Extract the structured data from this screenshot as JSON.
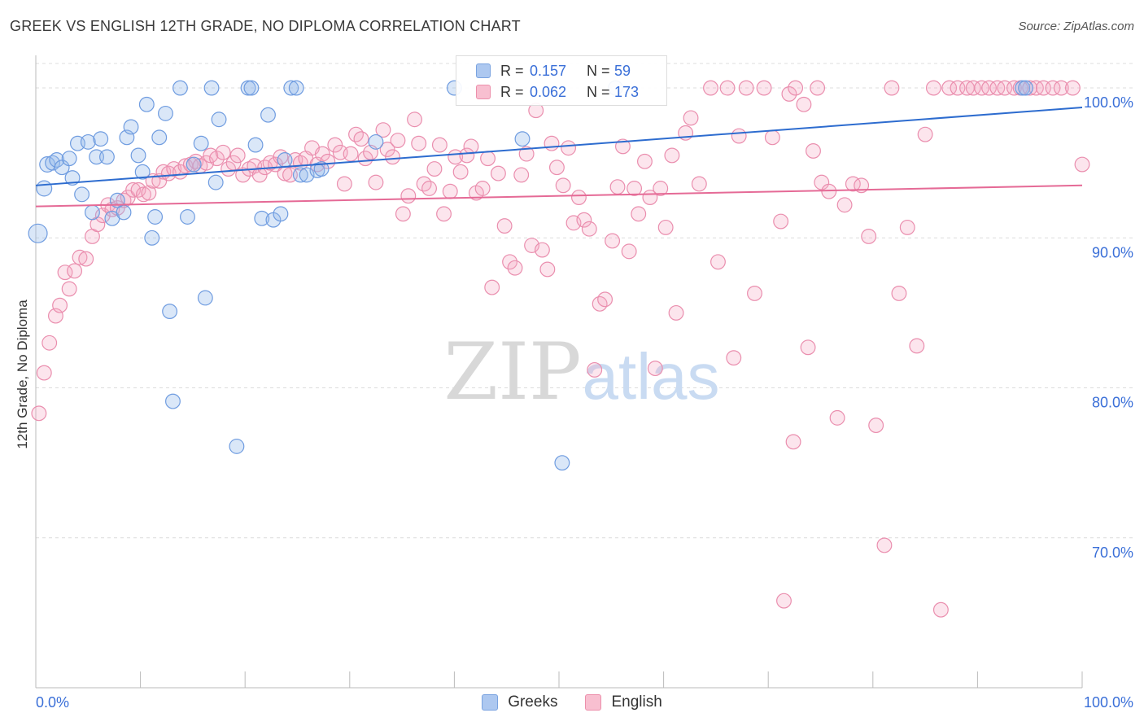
{
  "title": "GREEK VS ENGLISH 12TH GRADE, NO DIPLOMA CORRELATION CHART",
  "source": "Source: ZipAtlas.com",
  "watermark": {
    "zip": "ZIP",
    "atlas": "atlas"
  },
  "legend": {
    "r_label": "R =",
    "n_label": "N =",
    "rows": [
      {
        "name": "Greeks",
        "r": "0.157",
        "n": "59",
        "fill": "#adc8f0",
        "stroke": "#7aa3e0"
      },
      {
        "name": "English",
        "r": "0.062",
        "n": "173",
        "fill": "#f8bfd0",
        "stroke": "#ec8fab"
      }
    ]
  },
  "colors": {
    "greeks_fill": "rgba(150,185,236,0.35)",
    "greeks_stroke": "#6f9ce0",
    "greeks_line": "#2d6ccf",
    "english_fill": "rgba(246,170,195,0.30)",
    "english_stroke": "#ea8eae",
    "english_line": "#e56a96",
    "tick_label": "#3a6fd8",
    "grid": "#dcdcdc"
  },
  "chart_data": {
    "type": "scatter",
    "title": "GREEK VS ENGLISH 12TH GRADE, NO DIPLOMA CORRELATION CHART",
    "ylabel": "12th Grade, No Diploma",
    "xlabel": "",
    "xlim": [
      0,
      100
    ],
    "ylim": [
      60,
      102.5
    ],
    "x_tick_labels": [
      {
        "value": 0,
        "label": "0.0%"
      },
      {
        "value": 100,
        "label": "100.0%"
      }
    ],
    "y_tick_labels": [
      {
        "value": 100,
        "label": "100.0%"
      },
      {
        "value": 90,
        "label": "90.0%"
      },
      {
        "value": 80,
        "label": "80.0%"
      },
      {
        "value": 70,
        "label": "70.0%"
      }
    ],
    "grid": true,
    "legend_placement": "top-center",
    "series": [
      {
        "name": "Greeks",
        "r": 0.157,
        "n": 59,
        "trend": {
          "x": [
            0,
            100
          ],
          "y": [
            93.5,
            98.7
          ]
        },
        "points": [
          [
            0.2,
            90.3
          ],
          [
            0.8,
            93.3
          ],
          [
            1.1,
            94.9
          ],
          [
            1.6,
            95.0
          ],
          [
            2.0,
            95.2
          ],
          [
            2.5,
            94.7
          ],
          [
            3.2,
            95.3
          ],
          [
            3.5,
            94.0
          ],
          [
            4.0,
            96.3
          ],
          [
            4.4,
            92.9
          ],
          [
            5.0,
            96.4
          ],
          [
            5.4,
            91.7
          ],
          [
            5.8,
            95.4
          ],
          [
            6.2,
            96.6
          ],
          [
            6.8,
            95.4
          ],
          [
            7.3,
            91.3
          ],
          [
            7.8,
            92.5
          ],
          [
            8.4,
            91.7
          ],
          [
            8.7,
            96.7
          ],
          [
            9.1,
            97.4
          ],
          [
            9.8,
            95.5
          ],
          [
            10.2,
            94.4
          ],
          [
            10.6,
            98.9
          ],
          [
            11.1,
            90.0
          ],
          [
            11.4,
            91.4
          ],
          [
            11.8,
            96.7
          ],
          [
            12.4,
            98.3
          ],
          [
            12.8,
            85.1
          ],
          [
            13.1,
            79.1
          ],
          [
            13.8,
            100.0
          ],
          [
            14.5,
            91.4
          ],
          [
            15.1,
            94.9
          ],
          [
            15.8,
            96.3
          ],
          [
            16.2,
            86.0
          ],
          [
            16.8,
            100.0
          ],
          [
            17.2,
            93.7
          ],
          [
            17.5,
            97.9
          ],
          [
            19.2,
            76.1
          ],
          [
            20.3,
            100.0
          ],
          [
            20.6,
            100.0
          ],
          [
            21.0,
            96.2
          ],
          [
            21.6,
            91.3
          ],
          [
            22.2,
            98.2
          ],
          [
            22.7,
            91.2
          ],
          [
            23.4,
            91.6
          ],
          [
            23.8,
            95.2
          ],
          [
            24.4,
            100.0
          ],
          [
            24.9,
            100.0
          ],
          [
            25.3,
            94.2
          ],
          [
            25.9,
            94.2
          ],
          [
            26.9,
            94.5
          ],
          [
            27.3,
            94.6
          ],
          [
            32.5,
            96.4
          ],
          [
            40.0,
            100.0
          ],
          [
            46.5,
            96.6
          ],
          [
            50.3,
            75.0
          ],
          [
            55.4,
            100.0
          ],
          [
            94.3,
            100.0
          ],
          [
            94.6,
            100.0
          ]
        ],
        "sizes": [
          44,
          36,
          36,
          34,
          34,
          34,
          34,
          34,
          34,
          34,
          34,
          34,
          34,
          34,
          34,
          34,
          34,
          34,
          34,
          34,
          34,
          34,
          34,
          34,
          34,
          34,
          34,
          34,
          34,
          34,
          34,
          34,
          34,
          34,
          34,
          34,
          34,
          34,
          34,
          34,
          34,
          34,
          34,
          34,
          34,
          34,
          34,
          34,
          34,
          34,
          34,
          34,
          34,
          34,
          34,
          34,
          34,
          34,
          34
        ]
      },
      {
        "name": "English",
        "r": 0.062,
        "n": 173,
        "trend": {
          "x": [
            0,
            100
          ],
          "y": [
            92.1,
            93.5
          ]
        },
        "points": [
          [
            0.3,
            78.3
          ],
          [
            0.8,
            81.0
          ],
          [
            1.3,
            83.0
          ],
          [
            1.9,
            84.8
          ],
          [
            2.3,
            85.5
          ],
          [
            2.8,
            87.7
          ],
          [
            3.2,
            86.6
          ],
          [
            3.7,
            87.8
          ],
          [
            4.2,
            88.7
          ],
          [
            4.8,
            88.6
          ],
          [
            5.4,
            90.1
          ],
          [
            5.9,
            90.9
          ],
          [
            6.4,
            91.5
          ],
          [
            6.9,
            92.2
          ],
          [
            7.3,
            91.9
          ],
          [
            7.8,
            92.0
          ],
          [
            8.4,
            92.5
          ],
          [
            8.8,
            92.7
          ],
          [
            9.3,
            93.2
          ],
          [
            9.8,
            93.2
          ],
          [
            10.3,
            92.9
          ],
          [
            10.8,
            93.0
          ],
          [
            11.2,
            93.8
          ],
          [
            11.8,
            93.8
          ],
          [
            12.2,
            94.4
          ],
          [
            12.7,
            94.3
          ],
          [
            13.2,
            94.6
          ],
          [
            13.8,
            94.4
          ],
          [
            14.3,
            94.8
          ],
          [
            14.8,
            94.9
          ],
          [
            15.3,
            95.1
          ],
          [
            15.7,
            94.8
          ],
          [
            16.3,
            95.0
          ],
          [
            16.7,
            95.5
          ],
          [
            17.3,
            95.3
          ],
          [
            17.9,
            95.7
          ],
          [
            18.4,
            94.6
          ],
          [
            18.9,
            95.0
          ],
          [
            19.3,
            95.5
          ],
          [
            19.8,
            94.2
          ],
          [
            20.4,
            94.6
          ],
          [
            20.9,
            94.8
          ],
          [
            21.4,
            94.2
          ],
          [
            21.9,
            94.7
          ],
          [
            22.4,
            95.0
          ],
          [
            22.9,
            94.9
          ],
          [
            23.4,
            95.4
          ],
          [
            23.8,
            94.3
          ],
          [
            24.3,
            94.2
          ],
          [
            24.8,
            95.2
          ],
          [
            25.3,
            95.0
          ],
          [
            25.8,
            95.3
          ],
          [
            26.4,
            96.0
          ],
          [
            26.9,
            94.9
          ],
          [
            27.4,
            95.6
          ],
          [
            27.9,
            95.1
          ],
          [
            28.6,
            96.2
          ],
          [
            29.1,
            95.7
          ],
          [
            29.5,
            93.6
          ],
          [
            30.1,
            95.6
          ],
          [
            30.6,
            96.9
          ],
          [
            31.1,
            96.6
          ],
          [
            31.5,
            95.3
          ],
          [
            32.0,
            95.7
          ],
          [
            32.5,
            93.7
          ],
          [
            33.2,
            97.2
          ],
          [
            33.6,
            95.9
          ],
          [
            34.1,
            95.4
          ],
          [
            34.6,
            96.5
          ],
          [
            35.1,
            91.6
          ],
          [
            35.6,
            92.8
          ],
          [
            36.2,
            97.9
          ],
          [
            36.6,
            96.3
          ],
          [
            37.1,
            93.6
          ],
          [
            37.6,
            93.3
          ],
          [
            38.1,
            94.6
          ],
          [
            38.6,
            96.2
          ],
          [
            39.0,
            91.6
          ],
          [
            39.6,
            93.1
          ],
          [
            40.1,
            95.4
          ],
          [
            40.6,
            94.4
          ],
          [
            41.2,
            95.5
          ],
          [
            41.6,
            96.1
          ],
          [
            42.1,
            93.0
          ],
          [
            42.7,
            93.3
          ],
          [
            43.2,
            95.3
          ],
          [
            43.6,
            86.7
          ],
          [
            44.2,
            94.3
          ],
          [
            44.8,
            90.8
          ],
          [
            45.3,
            88.4
          ],
          [
            45.8,
            88.0
          ],
          [
            46.4,
            94.2
          ],
          [
            46.9,
            95.6
          ],
          [
            47.4,
            89.5
          ],
          [
            47.8,
            98.5
          ],
          [
            48.4,
            89.2
          ],
          [
            48.9,
            87.9
          ],
          [
            49.3,
            96.3
          ],
          [
            49.8,
            94.7
          ],
          [
            50.4,
            93.5
          ],
          [
            50.9,
            96.0
          ],
          [
            51.4,
            91.0
          ],
          [
            51.9,
            92.7
          ],
          [
            52.4,
            91.2
          ],
          [
            52.9,
            90.6
          ],
          [
            53.4,
            81.2
          ],
          [
            53.9,
            85.6
          ],
          [
            54.4,
            85.9
          ],
          [
            55.1,
            89.8
          ],
          [
            55.6,
            93.4
          ],
          [
            56.1,
            96.1
          ],
          [
            56.7,
            89.1
          ],
          [
            57.2,
            93.3
          ],
          [
            57.6,
            91.6
          ],
          [
            58.2,
            95.1
          ],
          [
            58.7,
            92.7
          ],
          [
            59.2,
            81.3
          ],
          [
            59.7,
            93.3
          ],
          [
            60.2,
            90.7
          ],
          [
            60.8,
            95.5
          ],
          [
            61.2,
            85.0
          ],
          [
            62.1,
            97.0
          ],
          [
            62.6,
            98.0
          ],
          [
            63.4,
            93.6
          ],
          [
            64.5,
            100.0
          ],
          [
            65.2,
            88.4
          ],
          [
            66.1,
            100.0
          ],
          [
            66.7,
            82.0
          ],
          [
            67.2,
            96.8
          ],
          [
            67.9,
            100.0
          ],
          [
            68.7,
            86.3
          ],
          [
            69.6,
            100.0
          ],
          [
            70.4,
            96.7
          ],
          [
            71.2,
            91.1
          ],
          [
            72.0,
            99.6
          ],
          [
            72.6,
            100.0
          ],
          [
            73.4,
            98.9
          ],
          [
            74.3,
            95.8
          ],
          [
            75.1,
            93.7
          ],
          [
            75.8,
            93.1
          ],
          [
            76.6,
            78.0
          ],
          [
            77.3,
            92.2
          ],
          [
            78.1,
            93.6
          ],
          [
            78.9,
            93.5
          ],
          [
            79.6,
            90.1
          ],
          [
            80.3,
            77.5
          ],
          [
            81.1,
            69.5
          ],
          [
            81.8,
            100.0
          ],
          [
            82.5,
            86.3
          ],
          [
            83.3,
            90.7
          ],
          [
            84.2,
            82.8
          ],
          [
            85.0,
            96.9
          ],
          [
            85.8,
            100.0
          ],
          [
            86.5,
            65.2
          ],
          [
            87.3,
            100.0
          ],
          [
            88.1,
            100.0
          ],
          [
            89.0,
            100.0
          ],
          [
            89.6,
            100.0
          ],
          [
            90.4,
            100.0
          ],
          [
            91.1,
            100.0
          ],
          [
            91.9,
            100.0
          ],
          [
            92.6,
            100.0
          ],
          [
            93.5,
            100.0
          ],
          [
            94.1,
            100.0
          ],
          [
            95.0,
            100.0
          ],
          [
            95.6,
            100.0
          ],
          [
            96.3,
            100.0
          ],
          [
            97.2,
            100.0
          ],
          [
            98.0,
            100.0
          ],
          [
            99.1,
            100.0
          ],
          [
            100.0,
            94.9
          ],
          [
            71.5,
            65.8
          ],
          [
            72.4,
            76.4
          ],
          [
            73.8,
            82.7
          ],
          [
            74.7,
            100.0
          ]
        ]
      }
    ]
  }
}
